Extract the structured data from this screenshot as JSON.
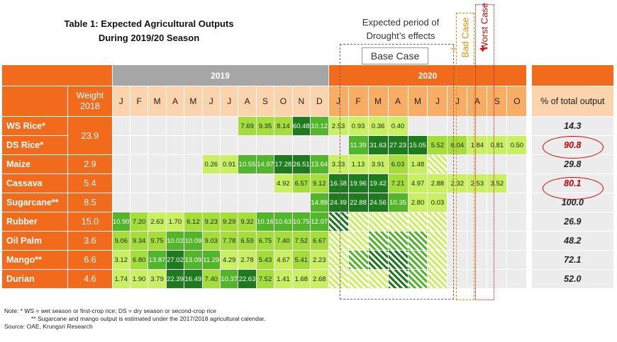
{
  "title": {
    "line1": "Table 1: Expected Agricultural Outputs",
    "line2": "During 2019/20 Season"
  },
  "annotations": {
    "drought_line1": "Expected period of",
    "drought_line2": "Drought’s effects",
    "base_case": "Base Case",
    "bad_case": "Bad Case",
    "worst_case": "Worst Case",
    "plus": "+"
  },
  "header": {
    "year_2019": "2019",
    "year_2020": "2020",
    "weight_line1": "Weight",
    "weight_line2": "2018",
    "pct": "% of total output",
    "months_2019": [
      "J",
      "F",
      "M",
      "A",
      "M",
      "J",
      "J",
      "A",
      "S",
      "O",
      "N",
      "D"
    ],
    "months_2020": [
      "J",
      "F",
      "M",
      "A",
      "M",
      "J",
      "J",
      "A",
      "S",
      "O"
    ]
  },
  "rows": [
    {
      "name": "WS Rice*",
      "weight": "23.9",
      "pct": "14.3",
      "y2019": [
        "",
        "",
        "",
        "",
        "",
        "",
        "",
        "7.69",
        "9.35",
        "8.14",
        "60.48",
        "10.12"
      ],
      "y2020": [
        "2.53",
        "0.93",
        "0.36",
        "0.40",
        "",
        "",
        "",
        "",
        "",
        ""
      ]
    },
    {
      "name": "DS Rice*",
      "weight": "",
      "pct": "90.8",
      "y2019": [
        "",
        "",
        "",
        "",
        "",
        "",
        "",
        "",
        "",
        "",
        "",
        ""
      ],
      "y2020": [
        "",
        "11.39",
        "31.63",
        "27.23",
        "15.05",
        "5.52",
        "6.04",
        "1.84",
        "0.81",
        "0.50"
      ]
    },
    {
      "name": "Maize",
      "weight": "2.9",
      "pct": "29.8",
      "y2019": [
        "",
        "",
        "",
        "",
        "",
        "0.26",
        "0.91",
        "10.55",
        "14.97",
        "17.28",
        "26.51",
        "13.64"
      ],
      "y2020": [
        "3.33",
        "1.13",
        "3.91",
        "6.03",
        "1.48",
        "",
        "",
        "",
        "",
        ""
      ]
    },
    {
      "name": "Cassava",
      "weight": "5.4",
      "pct": "80.1",
      "y2019": [
        "",
        "",
        "",
        "",
        "",
        "",
        "",
        "",
        "",
        "4.92",
        "6.57",
        "9.12"
      ],
      "y2020": [
        "16.58",
        "19.96",
        "19.42",
        "7.21",
        "4.97",
        "2.88",
        "2.32",
        "2.53",
        "3.52",
        ""
      ]
    },
    {
      "name": "Sugarcane**",
      "weight": "8.5",
      "pct": "100.0",
      "y2019": [
        "",
        "",
        "",
        "",
        "",
        "",
        "",
        "",
        "",
        "",
        "",
        "14.89"
      ],
      "y2020": [
        "24.49",
        "22.88",
        "24.56",
        "10.35",
        "2.80",
        "0.03",
        "",
        "",
        "",
        ""
      ]
    },
    {
      "name": "Rubber",
      "weight": "15.0",
      "pct": "26.9",
      "y2019": [
        "10.90",
        "7.20",
        "2.63",
        "1.70",
        "6.12",
        "9.23",
        "9.29",
        "9.32",
        "10.16",
        "10.63",
        "10.75",
        "12.07"
      ],
      "y2020": [
        "",
        "",
        "",
        "",
        "",
        "",
        "",
        "",
        "",
        ""
      ]
    },
    {
      "name": "Oil Palm",
      "weight": "3.6",
      "pct": "48.2",
      "y2019": [
        "9.06",
        "9.34",
        "9.75",
        "10.02",
        "10.09",
        "9.03",
        "7.78",
        "6.59",
        "6.75",
        "7.40",
        "7.52",
        "6.67"
      ],
      "y2020": [
        "",
        "",
        "",
        "",
        "",
        "",
        "",
        "",
        "",
        ""
      ]
    },
    {
      "name": "Mango**",
      "weight": "6.6",
      "pct": "72.1",
      "y2019": [
        "3.12",
        "6.80",
        "13.87",
        "27.02",
        "13.09",
        "11.29",
        "4.29",
        "2.78",
        "5.43",
        "4.67",
        "5.41",
        "2.23"
      ],
      "y2020": [
        "",
        "",
        "",
        "",
        "",
        "",
        "",
        "",
        "",
        ""
      ]
    },
    {
      "name": "Durian",
      "weight": "4.6",
      "pct": "52.0",
      "y2019": [
        "1.74",
        "1.90",
        "3.79",
        "22.39",
        "16.49",
        "7.40",
        "10.37",
        "22.63",
        "7.52",
        "1.41",
        "1.68",
        "2.68"
      ],
      "y2020": [
        "",
        "",
        "",
        "",
        "",
        "",
        "",
        "",
        "",
        ""
      ]
    }
  ],
  "notes": {
    "line1": "Note:   *    WS = wet season or first-crop rice; DS = dry season or second-crop rice",
    "line2": "**  Sugarcane and mango output is estimated under the 2017/2018 agricultural calendar.",
    "line3": "Source: OAE, Krungsri Research"
  },
  "colors": {
    "header_orange": "#f26a1b",
    "light_orange": "#fbd3ad",
    "gray_header": "#a6a6a6",
    "light_green": "#c8f060",
    "mid_green": "#a4de3a",
    "green": "#52b62a",
    "dark_green": "#1d7a1d",
    "ring_red": "#d40000"
  }
}
